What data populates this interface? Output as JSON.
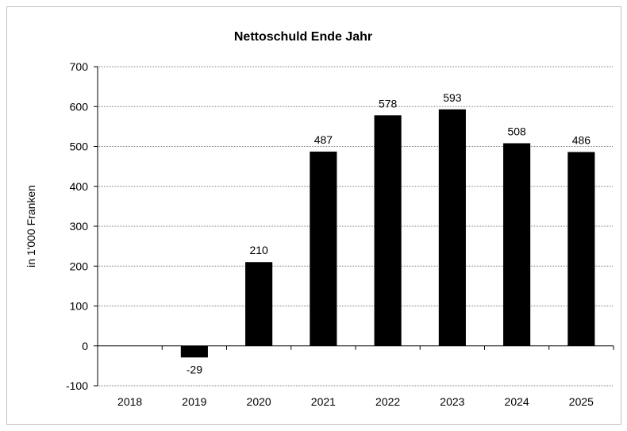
{
  "chart_data": {
    "type": "bar",
    "title": "Nettoschuld Ende Jahr",
    "ylabel": "in 1'000 Franken",
    "xlabel": "",
    "categories": [
      "2018",
      "2019",
      "2020",
      "2021",
      "2022",
      "2023",
      "2024",
      "2025"
    ],
    "values": [
      null,
      -29,
      210,
      487,
      578,
      593,
      508,
      486
    ],
    "data_labels": [
      "",
      "-29",
      "210",
      "487",
      "578",
      "593",
      "508",
      "486"
    ],
    "ylim": [
      -100,
      700
    ],
    "yticks": [
      -100,
      0,
      100,
      200,
      300,
      400,
      500,
      600,
      700
    ],
    "grid": true,
    "bar_color": "#000000",
    "grid_color": "#808080"
  }
}
